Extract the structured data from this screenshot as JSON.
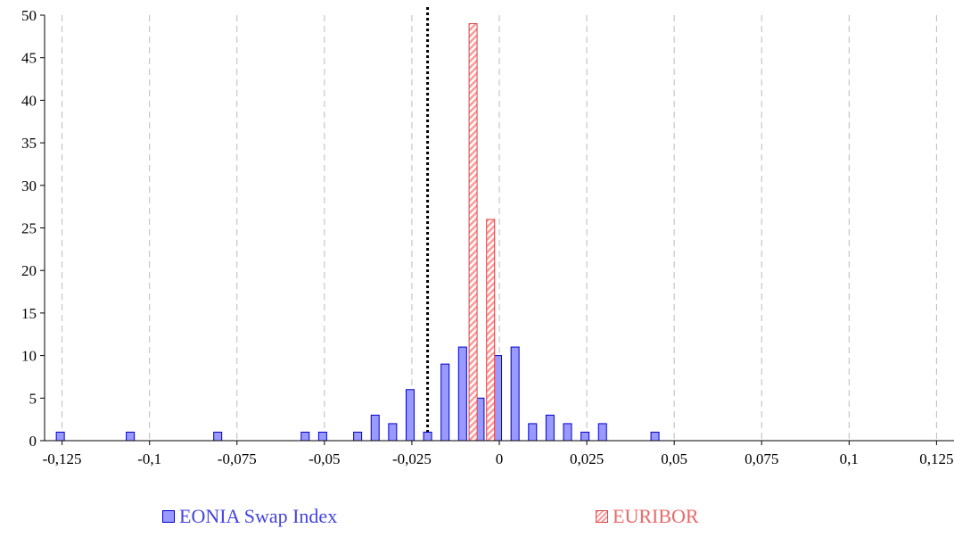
{
  "chart_data": {
    "type": "bar",
    "title": "",
    "xlabel": "",
    "ylabel": "",
    "xlim": [
      -0.13,
      0.13
    ],
    "ylim": [
      0,
      50
    ],
    "x_ticks": [
      -0.125,
      -0.1,
      -0.075,
      -0.05,
      -0.025,
      0,
      0.025,
      0.05,
      0.075,
      0.1,
      0.125
    ],
    "x_tick_labels": [
      "-0,125",
      "-0,1",
      "-0,075",
      "-0,05",
      "-0,025",
      "0",
      "0,025",
      "0,05",
      "0,075",
      "0,1",
      "0,125"
    ],
    "y_ticks": [
      0,
      5,
      10,
      15,
      20,
      25,
      30,
      35,
      40,
      45,
      50
    ],
    "y_tick_labels": [
      "0",
      "5",
      "10",
      "15",
      "20",
      "25",
      "30",
      "35",
      "40",
      "45",
      "50"
    ],
    "grid": "vertical dashed",
    "reference_line": {
      "x": -0.0205,
      "style": "dotted"
    },
    "legend_placement": "bottom",
    "series": [
      {
        "name": "EONIA Swap Index",
        "color": "#9999ff",
        "edge_color": "#0000cc",
        "pattern": "solid",
        "points": [
          {
            "x": -0.1255,
            "y": 1
          },
          {
            "x": -0.1055,
            "y": 1
          },
          {
            "x": -0.0805,
            "y": 1
          },
          {
            "x": -0.0555,
            "y": 1
          },
          {
            "x": -0.0505,
            "y": 1
          },
          {
            "x": -0.0405,
            "y": 1
          },
          {
            "x": -0.0355,
            "y": 3
          },
          {
            "x": -0.0305,
            "y": 2
          },
          {
            "x": -0.0255,
            "y": 6
          },
          {
            "x": -0.0205,
            "y": 1
          },
          {
            "x": -0.0155,
            "y": 9
          },
          {
            "x": -0.0105,
            "y": 11
          },
          {
            "x": -0.0055,
            "y": 5
          },
          {
            "x": -0.0005,
            "y": 10
          },
          {
            "x": 0.0045,
            "y": 11
          },
          {
            "x": 0.0095,
            "y": 2
          },
          {
            "x": 0.0145,
            "y": 3
          },
          {
            "x": 0.0195,
            "y": 2
          },
          {
            "x": 0.0245,
            "y": 1
          },
          {
            "x": 0.0295,
            "y": 2
          },
          {
            "x": 0.0445,
            "y": 1
          }
        ]
      },
      {
        "name": "EURIBOR",
        "color": "#ff9999",
        "edge_color": "#dd4444",
        "pattern": "hatched",
        "points": [
          {
            "x": -0.0075,
            "y": 49
          },
          {
            "x": -0.0025,
            "y": 26
          }
        ]
      }
    ]
  }
}
